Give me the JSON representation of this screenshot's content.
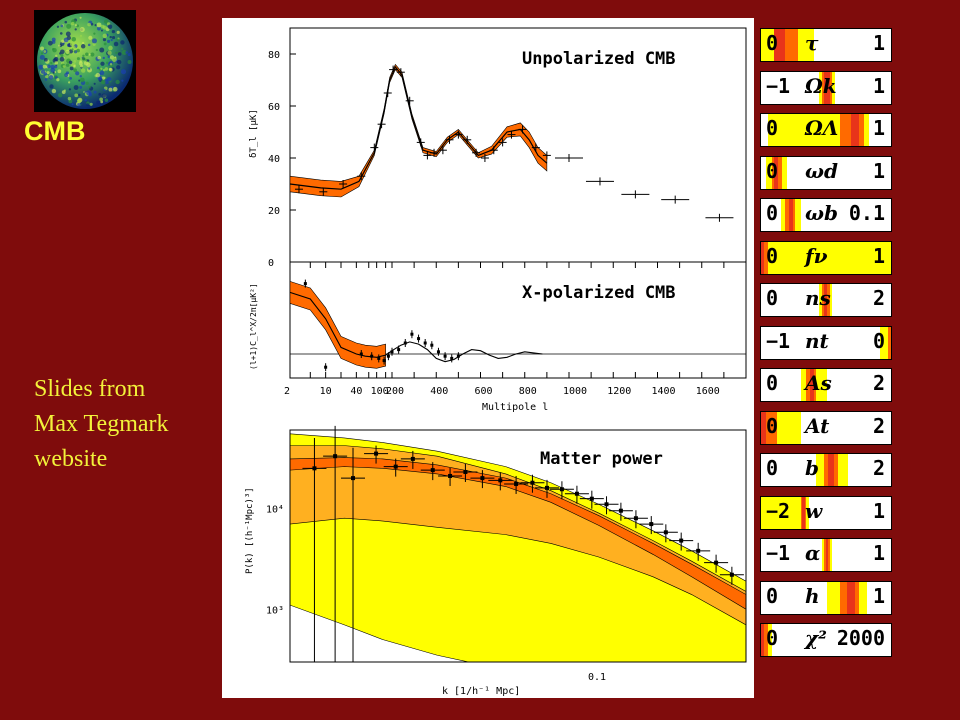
{
  "slide": {
    "title": "CMB",
    "credit_lines": [
      "Slides from",
      "Max Tegmark",
      "website"
    ]
  },
  "colors": {
    "background": "#7f0c0c",
    "title": "#ffff33",
    "credit": "#f2f23a",
    "orange": "#ff6a00",
    "red_band": "#e8341a",
    "light_orange": "#ffb020",
    "yellow": "#ffff00"
  },
  "chart_data": [
    {
      "type": "line",
      "panel": "unpolarized",
      "title": "Unpolarized CMB",
      "ylabel": "δT_l [μK]",
      "xlabel": "",
      "ylim": [
        0,
        90
      ],
      "yticks": [
        0,
        20,
        40,
        60,
        80
      ],
      "x_axis_ticks": [
        "2",
        "10",
        "40",
        "100",
        "200",
        "400",
        "600",
        "800",
        "1000",
        "1200",
        "1400",
        "1600"
      ],
      "model_curve": {
        "l": [
          2,
          8,
          20,
          45,
          90,
          140,
          180,
          215,
          245,
          290,
          340,
          400,
          450,
          500,
          540,
          590,
          650,
          720,
          780,
          820,
          860,
          900
        ],
        "value": [
          30,
          28.5,
          28,
          31,
          42,
          58,
          70,
          75,
          72,
          56,
          43,
          41.5,
          47,
          50,
          46,
          41,
          43,
          50,
          51,
          47,
          41,
          38
        ]
      },
      "band_halfwidth": [
        3,
        3,
        3,
        2,
        1,
        1,
        1,
        1,
        1,
        1,
        1,
        1,
        1,
        1,
        1,
        1,
        1.5,
        2,
        2.5,
        3,
        3,
        3
      ],
      "data_points": {
        "l": [
          3,
          9,
          22,
          50,
          90,
          125,
          165,
          205,
          240,
          280,
          330,
          360,
          390,
          430,
          460,
          500,
          540,
          580,
          620,
          660,
          700,
          740,
          790,
          850,
          900,
          1000,
          1140,
          1300,
          1480,
          1680
        ],
        "value": [
          28,
          27,
          30,
          33,
          44,
          53,
          65,
          74,
          73,
          62,
          46,
          41,
          42,
          43,
          47,
          49,
          47,
          42,
          40,
          43,
          46,
          49,
          51,
          44,
          41,
          40,
          31,
          26,
          24,
          17
        ]
      }
    },
    {
      "type": "line",
      "panel": "x-polarized",
      "title": "X-polarized CMB",
      "ylabel": "(l+1)C_l^X/2π[μK²]",
      "xlabel": "Multipole l",
      "x_axis_ticks": [
        "2",
        "10",
        "40",
        "100",
        "200",
        "400",
        "600",
        "800",
        "1000",
        "1200",
        "1400",
        "1600"
      ],
      "model_curve": {
        "l": [
          2,
          5,
          10,
          20,
          40,
          60,
          100,
          150,
          200,
          240,
          280,
          320,
          360,
          400,
          440,
          480,
          520,
          560,
          600,
          640,
          680,
          720,
          760,
          800,
          840,
          880
        ],
        "value": [
          2.8,
          2.5,
          1.6,
          0.3,
          0,
          -0.1,
          -0.15,
          -0.05,
          0.15,
          0.4,
          0.55,
          0.45,
          0.2,
          -0.2,
          -0.35,
          -0.25,
          0,
          0.2,
          0.15,
          -0.05,
          -0.2,
          -0.15,
          0,
          0.1,
          0.05,
          0
        ]
      },
      "data_points": {
        "l": [
          4,
          10,
          50,
          80,
          110,
          140,
          170,
          200,
          230,
          260,
          290,
          320,
          350,
          380,
          410,
          440,
          470,
          500
        ],
        "value": [
          3.2,
          -0.6,
          0,
          -0.1,
          -0.2,
          -0.3,
          -0.1,
          0.1,
          0.2,
          0.5,
          0.9,
          0.7,
          0.5,
          0.4,
          0.1,
          -0.1,
          -0.2,
          -0.1
        ]
      }
    },
    {
      "type": "area",
      "panel": "matter-power",
      "title": "Matter power",
      "ylabel": "P(k) [(h⁻¹Mpc)³]",
      "xlabel": "k [1/h⁻¹ Mpc]",
      "x_scale": "log",
      "y_scale": "log",
      "xlim": [
        0.01,
        0.3
      ],
      "ylim": [
        300,
        60000
      ],
      "x_tick_label": "0.1",
      "y_tick_labels": [
        "10⁴",
        "10³"
      ],
      "k": [
        0.01,
        0.015,
        0.02,
        0.03,
        0.05,
        0.07,
        0.1,
        0.15,
        0.2,
        0.3
      ],
      "bands": {
        "yellow_upper": [
          55000,
          50000,
          45000,
          37000,
          26000,
          18000,
          11000,
          6000,
          3800,
          1900
        ],
        "yellow_lower": [
          1100,
          700,
          500,
          350,
          250,
          200,
          150,
          100,
          70,
          40
        ],
        "light_orange_upper": [
          42000,
          42000,
          39000,
          33000,
          22000,
          15000,
          9000,
          4800,
          3000,
          1500
        ],
        "light_orange_lower": [
          7000,
          8000,
          7500,
          6500,
          5500,
          4500,
          3300,
          2100,
          1400,
          700
        ],
        "red_upper": [
          31000,
          32000,
          31000,
          27000,
          20000,
          14000,
          8500,
          4500,
          2800,
          1400
        ],
        "red_lower": [
          24000,
          26000,
          25000,
          22000,
          16500,
          11500,
          6800,
          3500,
          2100,
          1000
        ]
      },
      "data_points": {
        "k": [
          0.012,
          0.014,
          0.016,
          0.019,
          0.022,
          0.025,
          0.029,
          0.033,
          0.037,
          0.042,
          0.048,
          0.054,
          0.061,
          0.068,
          0.076,
          0.085,
          0.095,
          0.106,
          0.118,
          0.132,
          0.148,
          0.165,
          0.185,
          0.21,
          0.24,
          0.27
        ],
        "value": [
          25000,
          33000,
          20000,
          35000,
          26000,
          31000,
          24000,
          21000,
          23000,
          20000,
          19000,
          17500,
          18000,
          16000,
          15500,
          14000,
          12500,
          11000,
          9500,
          8000,
          7000,
          5800,
          4800,
          3800,
          2900,
          2200
        ]
      }
    }
  ],
  "parameters": [
    {
      "low": "0",
      "name": "τ",
      "high": "1",
      "orange": [
        0.1,
        0.28
      ],
      "red": [
        0.1,
        0.18
      ],
      "yellow": [
        0,
        0.4
      ]
    },
    {
      "low": "−1",
      "name": "Ωk",
      "high": "1",
      "orange": [
        0.46,
        0.54
      ],
      "red": [
        0.48,
        0.52
      ],
      "yellow": [
        0.44,
        0.56
      ]
    },
    {
      "low": "0",
      "name": "ΩΛ",
      "high": "1",
      "orange": [
        0.6,
        0.78
      ],
      "red": [
        0.68,
        0.74
      ],
      "yellow": [
        0.05,
        0.82
      ]
    },
    {
      "low": "0",
      "name": "ωd",
      "high": "1",
      "orange": [
        0.08,
        0.16
      ],
      "red": [
        0.1,
        0.13
      ],
      "yellow": [
        0.04,
        0.2
      ]
    },
    {
      "low": "0",
      "name": "ωb",
      "high": "0.1",
      "orange": [
        0.18,
        0.26
      ],
      "red": [
        0.21,
        0.24
      ],
      "yellow": [
        0.15,
        0.3
      ]
    },
    {
      "low": "0",
      "name": "fν",
      "high": "1",
      "orange": [
        0,
        0.05
      ],
      "red": [
        0,
        0.02
      ],
      "yellow": [
        0,
        1
      ]
    },
    {
      "low": "0",
      "name": "ns",
      "high": "2",
      "orange": [
        0.46,
        0.52
      ],
      "red": [
        0.48,
        0.5
      ],
      "yellow": [
        0.44,
        0.54
      ]
    },
    {
      "low": "−1",
      "name": "nt",
      "high": "0",
      "orange": [
        0.96,
        1
      ],
      "red": [
        0.99,
        1
      ],
      "yellow": [
        0.9,
        1
      ]
    },
    {
      "low": "0",
      "name": "As",
      "high": "2",
      "orange": [
        0.34,
        0.42
      ],
      "red": [
        0.37,
        0.4
      ],
      "yellow": [
        0.3,
        0.5
      ]
    },
    {
      "low": "0",
      "name": "At",
      "high": "2",
      "orange": [
        0,
        0.12
      ],
      "red": [
        0,
        0.04
      ],
      "yellow": [
        0,
        0.3
      ]
    },
    {
      "low": "0",
      "name": "b",
      "high": "2",
      "orange": [
        0.48,
        0.58
      ],
      "red": [
        0.51,
        0.55
      ],
      "yellow": [
        0.42,
        0.66
      ]
    },
    {
      "low": "−2",
      "name": "w",
      "high": "1",
      "orange": [
        0.3,
        0.34
      ],
      "red": [
        0.31,
        0.33
      ],
      "yellow": [
        0,
        0.36
      ]
    },
    {
      "low": "−1",
      "name": "α",
      "high": "1",
      "orange": [
        0.48,
        0.52
      ],
      "red": [
        0.49,
        0.51
      ],
      "yellow": [
        0.46,
        0.54
      ]
    },
    {
      "low": "0",
      "name": "h",
      "high": "1",
      "orange": [
        0.6,
        0.74
      ],
      "red": [
        0.65,
        0.71
      ],
      "yellow": [
        0.5,
        0.8
      ]
    },
    {
      "low": "0",
      "name": "χ²",
      "high": "2000",
      "orange": [
        0,
        0.05
      ],
      "red": [
        0,
        0.02
      ],
      "yellow": [
        0,
        0.08
      ]
    }
  ]
}
